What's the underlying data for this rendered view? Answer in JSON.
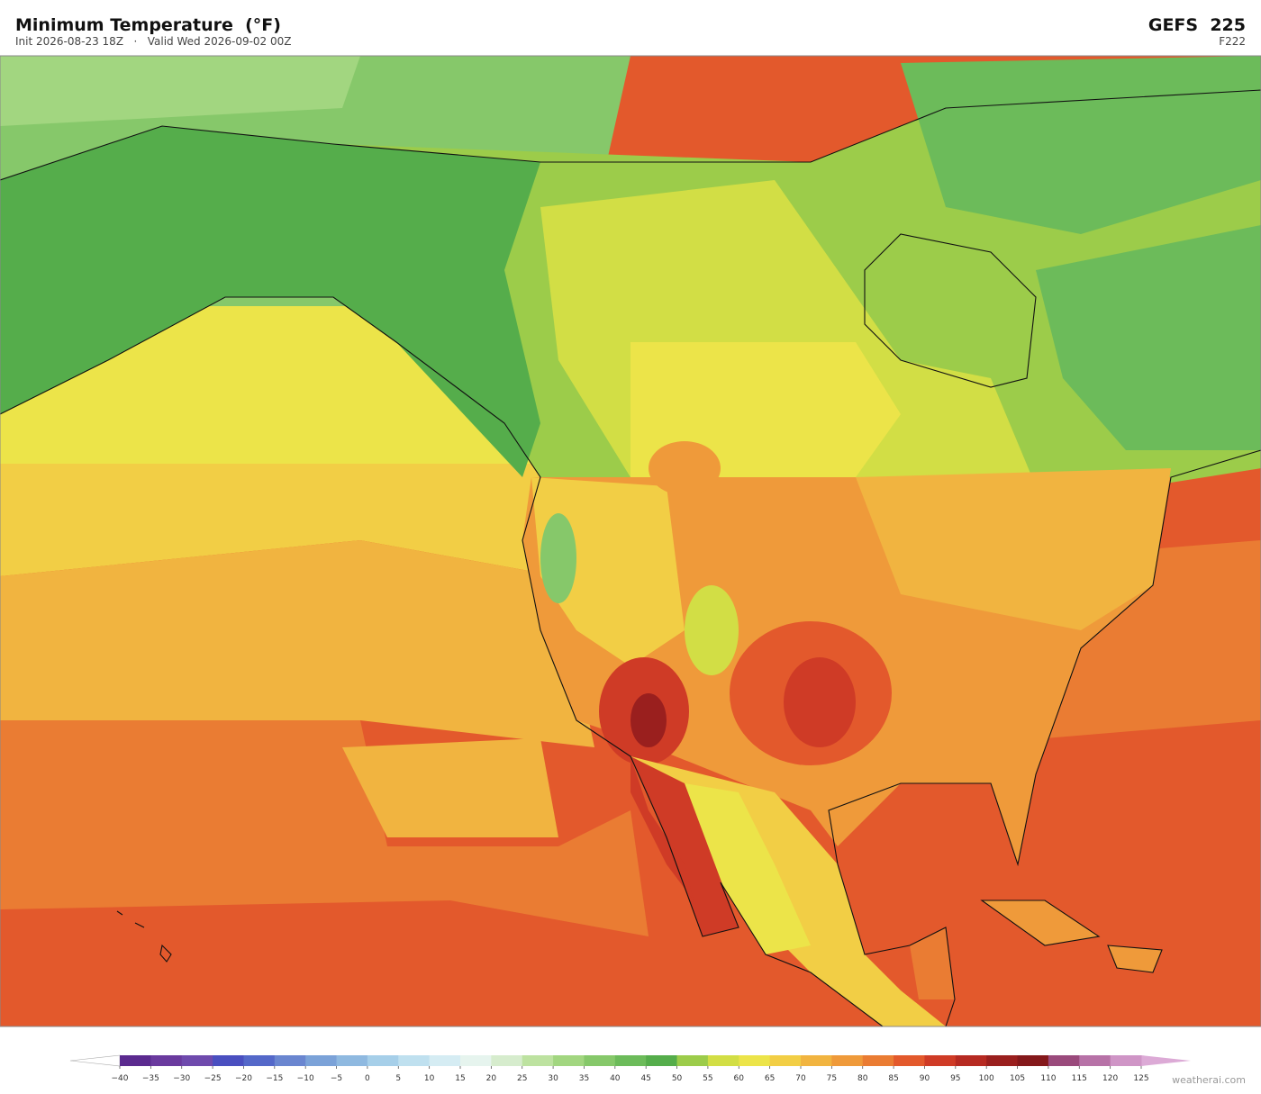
{
  "header": {
    "title": "Minimum Temperature  (°F)",
    "subtitle": "Init 2026-08-23 18Z   ·   Valid Wed 2026-09-02 00Z",
    "model": "GEFS  225",
    "forecast_hour": "F222"
  },
  "colorbar": {
    "ticks": [
      {
        "value": -40,
        "label": "−40"
      },
      {
        "value": -35,
        "label": "−35"
      },
      {
        "value": -30,
        "label": "−30"
      },
      {
        "value": -25,
        "label": "−25"
      },
      {
        "value": -20,
        "label": "−20"
      },
      {
        "value": -15,
        "label": "−15"
      },
      {
        "value": -10,
        "label": "−10"
      },
      {
        "value": -5,
        "label": "−5"
      },
      0,
      5,
      10,
      15,
      20,
      25,
      30,
      35,
      40,
      45,
      50,
      55,
      60,
      65,
      70,
      75,
      80,
      85,
      90,
      95,
      100,
      105,
      110,
      115,
      120,
      125
    ],
    "colors": [
      "#5b2a8f",
      "#6a3a9e",
      "#6f4aad",
      "#4a4fc0",
      "#5468c9",
      "#6a86d0",
      "#7ba2d8",
      "#8fb9e0",
      "#a6cfe9",
      "#bfe0ef",
      "#d5ecf3",
      "#e6f4ee",
      "#d6eccd",
      "#bde2a0",
      "#a2d680",
      "#86c86a",
      "#6cbb5a",
      "#55ad4b",
      "#9ccc4a",
      "#d2de45",
      "#ece449",
      "#f2ce45",
      "#f1b440",
      "#ef9a3a",
      "#ea7c33",
      "#e3592c",
      "#cf3b26",
      "#b62a22",
      "#9a1f1e",
      "#84181b",
      "#9a4a7c",
      "#b772a7",
      "#cf95c6"
    ],
    "under_color": "#ffffff",
    "over_color": "#dcaad6"
  },
  "footer": {
    "watermark": "weatherai.com"
  }
}
